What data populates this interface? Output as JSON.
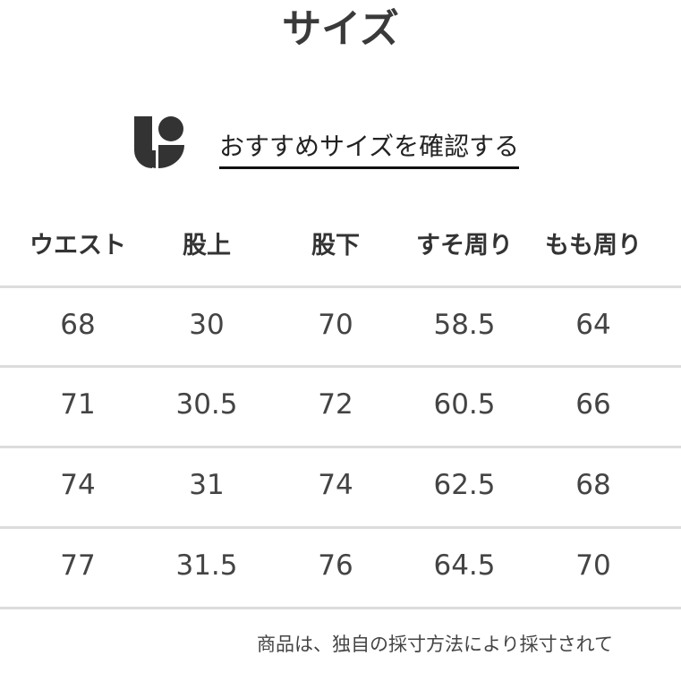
{
  "title": "サイズ",
  "recommend": {
    "icon": "brand-logo-icon",
    "link_label": "おすすめサイズを確認する"
  },
  "table": {
    "headers": [
      "ウエスト",
      "股上",
      "股下",
      "すそ周り",
      "もも周り"
    ],
    "rows": [
      [
        "68",
        "30",
        "70",
        "58.5",
        "64"
      ],
      [
        "71",
        "30.5",
        "72",
        "60.5",
        "66"
      ],
      [
        "74",
        "31",
        "74",
        "62.5",
        "68"
      ],
      [
        "77",
        "31.5",
        "76",
        "64.5",
        "70"
      ]
    ]
  },
  "note": "商品は、独自の採寸方法により採寸されて"
}
